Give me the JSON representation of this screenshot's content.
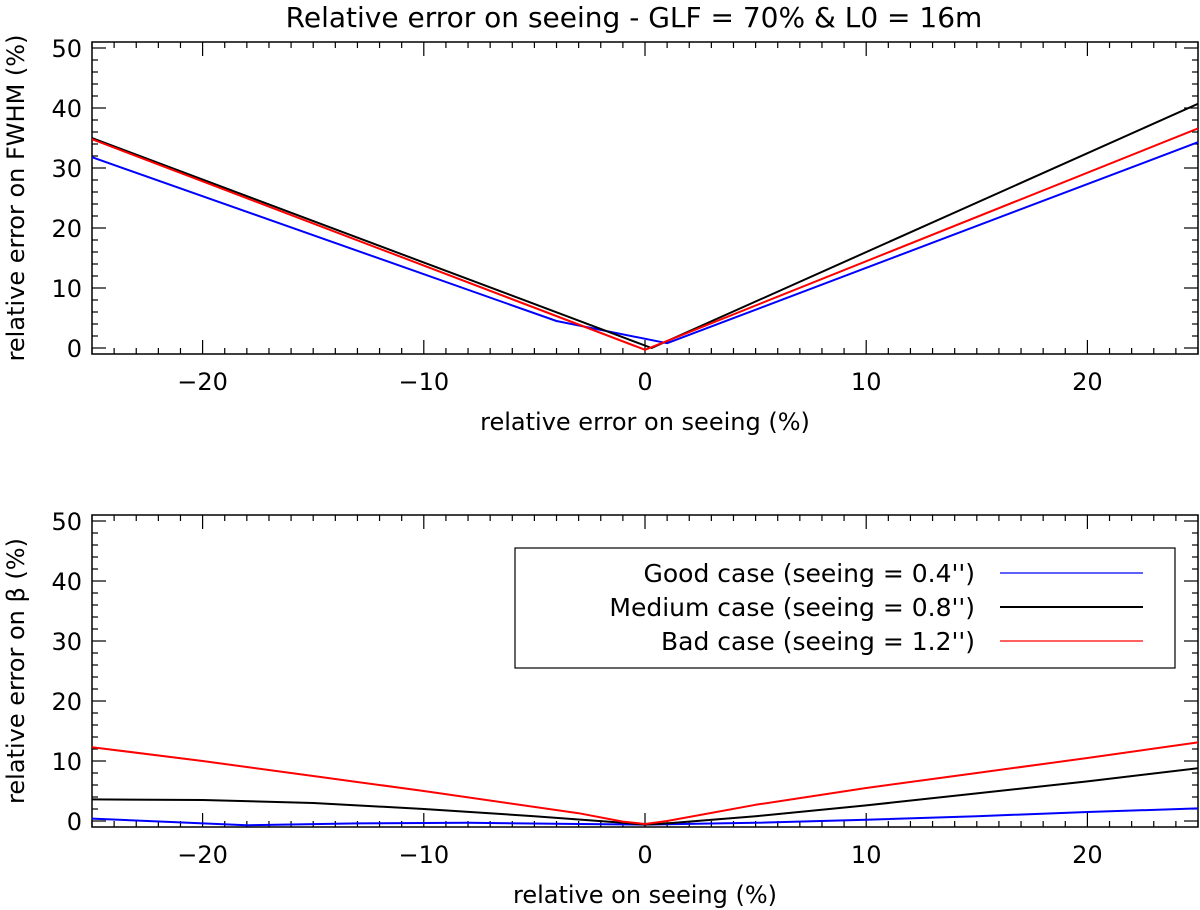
{
  "figure_title": "Relative error on seeing - GLF = 70% & L0 = 16m",
  "chart_data": [
    {
      "type": "line",
      "id": "fwhm",
      "title": "Relative error on seeing - GLF = 70% & L0 = 16m",
      "xlabel": "relative error on seeing (%)",
      "ylabel": "relative error on FWHM (%)",
      "xlim": [
        -25,
        25
      ],
      "ylim": [
        -1,
        51
      ],
      "xticks": [
        -20,
        -10,
        0,
        10,
        20
      ],
      "xtick_labels": [
        "−20",
        "−10",
        "0",
        "10",
        "20"
      ],
      "yticks": [
        0,
        10,
        20,
        30,
        40,
        50
      ],
      "ytick_labels": [
        "0",
        "10",
        "20",
        "30",
        "40",
        "50"
      ],
      "series": [
        {
          "name": "Good case (seeing = 0.4'')",
          "color": "#0000ff",
          "x": [
            -25,
            -4,
            1,
            25
          ],
          "y": [
            31.8,
            4.5,
            0.8,
            34.3
          ]
        },
        {
          "name": "Medium case (seeing = 0.8'')",
          "color": "#000000",
          "x": [
            -25,
            0.3,
            25
          ],
          "y": [
            35.0,
            0,
            40.7
          ]
        },
        {
          "name": "Bad case (seeing = 1.2'')",
          "color": "#ff0000",
          "x": [
            -25,
            0,
            25
          ],
          "y": [
            34.8,
            -0.3,
            36.6
          ]
        }
      ]
    },
    {
      "type": "line",
      "id": "beta",
      "title": "",
      "xlabel": "relative on seeing (%)",
      "ylabel": "relative error on β (%)",
      "xlim": [
        -25,
        25
      ],
      "ylim": [
        -1,
        51
      ],
      "xticks": [
        -20,
        -10,
        0,
        10,
        20
      ],
      "xtick_labels": [
        "−20",
        "−10",
        "0",
        "10",
        "20"
      ],
      "yticks": [
        0,
        10,
        20,
        30,
        40,
        50
      ],
      "ytick_labels": [
        "0",
        "10",
        "20",
        "30",
        "40",
        "50"
      ],
      "legend": {
        "position": "upper-right",
        "entries": [
          {
            "label": "Good case (seeing = 0.4'')",
            "color": "#0000ff"
          },
          {
            "label": "Medium case (seeing = 0.8'')",
            "color": "#000000"
          },
          {
            "label": "Bad case (seeing = 1.2'')",
            "color": "#ff0000"
          }
        ]
      },
      "series": [
        {
          "name": "Good case (seeing = 0.4'')",
          "color": "#0000ff",
          "x": [
            -25,
            -18,
            -13,
            -8,
            -3,
            0,
            5,
            10,
            15,
            20,
            25
          ],
          "y": [
            0.4,
            -0.7,
            -0.4,
            -0.3,
            -0.5,
            -0.6,
            -0.3,
            0.2,
            0.8,
            1.5,
            2.1
          ]
        },
        {
          "name": "Medium case (seeing = 0.8'')",
          "color": "#000000",
          "x": [
            -25,
            -20,
            -15,
            -10,
            -5,
            -1,
            0,
            1,
            5,
            10,
            15,
            20,
            25
          ],
          "y": [
            3.6,
            3.5,
            3.0,
            2.0,
            0.8,
            -0.3,
            -0.6,
            -0.4,
            0.8,
            2.6,
            4.6,
            6.6,
            8.8
          ]
        },
        {
          "name": "Bad case (seeing = 1.2'')",
          "color": "#ff0000",
          "x": [
            -25,
            -20,
            -15,
            -10,
            -3,
            -1,
            0,
            1,
            5,
            10,
            15,
            20,
            25
          ],
          "y": [
            12.3,
            10.0,
            7.5,
            5.0,
            1.3,
            -0.1,
            -0.5,
            0.0,
            2.7,
            5.5,
            8.0,
            10.5,
            13.1
          ]
        }
      ]
    }
  ]
}
